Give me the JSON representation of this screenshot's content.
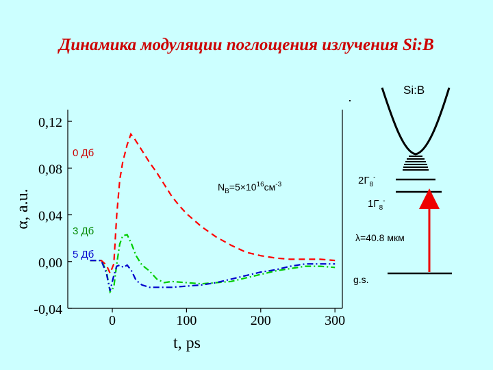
{
  "slide": {
    "title": "Динамика модуляции поглощения излучения Si:B"
  },
  "chart_data": {
    "type": "line",
    "xlabel": "t, ps",
    "ylabel": "α, a.u.",
    "xlim": [
      -60,
      310
    ],
    "ylim": [
      -0.04,
      0.13
    ],
    "x_ticks": [
      0,
      100,
      200,
      300
    ],
    "y_ticks": [
      -0.04,
      0.0,
      0.04,
      0.08,
      0.12
    ],
    "x_tick_labels": [
      "0",
      "100",
      "200",
      "300"
    ],
    "y_tick_labels": [
      "-0,04",
      "0,00",
      "0,04",
      "0,08",
      "0,12"
    ],
    "annotation": {
      "base": "N",
      "sub": "B",
      "mid": "=5×10",
      "sup1": "16",
      "unit": "см",
      "sup2": "-3"
    },
    "series": [
      {
        "name": "0 Дб",
        "color": "#ff0000",
        "dash": "dash",
        "points": [
          [
            -30,
            0.001
          ],
          [
            -15,
            0.001
          ],
          [
            -8,
            -0.003
          ],
          [
            -3,
            -0.01
          ],
          [
            2,
            -0.002
          ],
          [
            6,
            0.04
          ],
          [
            10,
            0.07
          ],
          [
            14,
            0.085
          ],
          [
            20,
            0.1
          ],
          [
            25,
            0.109
          ],
          [
            30,
            0.105
          ],
          [
            40,
            0.095
          ],
          [
            50,
            0.085
          ],
          [
            60,
            0.076
          ],
          [
            70,
            0.066
          ],
          [
            80,
            0.056
          ],
          [
            90,
            0.048
          ],
          [
            100,
            0.041
          ],
          [
            120,
            0.03
          ],
          [
            140,
            0.021
          ],
          [
            160,
            0.014
          ],
          [
            180,
            0.008
          ],
          [
            200,
            0.005
          ],
          [
            220,
            0.003
          ],
          [
            240,
            0.002
          ],
          [
            260,
            0.002
          ],
          [
            280,
            0.002
          ],
          [
            300,
            0.001
          ]
        ]
      },
      {
        "name": "3 Дб",
        "color": "#00cc00",
        "dash": "dashdot",
        "points": [
          [
            -30,
            0.001
          ],
          [
            -15,
            0.001
          ],
          [
            -8,
            -0.008
          ],
          [
            -3,
            -0.026
          ],
          [
            2,
            -0.022
          ],
          [
            6,
            -0.002
          ],
          [
            10,
            0.015
          ],
          [
            14,
            0.022
          ],
          [
            20,
            0.023
          ],
          [
            26,
            0.015
          ],
          [
            32,
            0.005
          ],
          [
            40,
            -0.003
          ],
          [
            50,
            -0.008
          ],
          [
            60,
            -0.015
          ],
          [
            70,
            -0.018
          ],
          [
            80,
            -0.017
          ],
          [
            100,
            -0.018
          ],
          [
            120,
            -0.019
          ],
          [
            140,
            -0.018
          ],
          [
            160,
            -0.017
          ],
          [
            180,
            -0.014
          ],
          [
            200,
            -0.011
          ],
          [
            220,
            -0.008
          ],
          [
            240,
            -0.006
          ],
          [
            260,
            -0.004
          ],
          [
            280,
            -0.004
          ],
          [
            300,
            -0.005
          ]
        ]
      },
      {
        "name": "5 Дб",
        "color": "#0000cc",
        "dash": "dashdot",
        "points": [
          [
            -30,
            0.001
          ],
          [
            -15,
            0.001
          ],
          [
            -8,
            -0.01
          ],
          [
            -3,
            -0.025
          ],
          [
            2,
            -0.012
          ],
          [
            6,
            -0.004
          ],
          [
            10,
            -0.003
          ],
          [
            15,
            -0.005
          ],
          [
            20,
            -0.003
          ],
          [
            26,
            -0.008
          ],
          [
            32,
            -0.016
          ],
          [
            40,
            -0.02
          ],
          [
            50,
            -0.022
          ],
          [
            60,
            -0.022
          ],
          [
            80,
            -0.022
          ],
          [
            100,
            -0.021
          ],
          [
            120,
            -0.02
          ],
          [
            140,
            -0.018
          ],
          [
            160,
            -0.015
          ],
          [
            180,
            -0.012
          ],
          [
            200,
            -0.009
          ],
          [
            220,
            -0.007
          ],
          [
            240,
            -0.004
          ],
          [
            260,
            -0.002
          ],
          [
            280,
            -0.002
          ],
          [
            300,
            -0.002
          ]
        ]
      }
    ]
  },
  "diagram": {
    "material": "Si:B",
    "level_upper": {
      "main": "2Γ",
      "sub": "8",
      "sup": "-"
    },
    "level_lower": {
      "main": "1Γ",
      "sub": "8",
      "sup": "-"
    },
    "wavelength": "λ=40.8 мкм",
    "ground": "g.s."
  }
}
